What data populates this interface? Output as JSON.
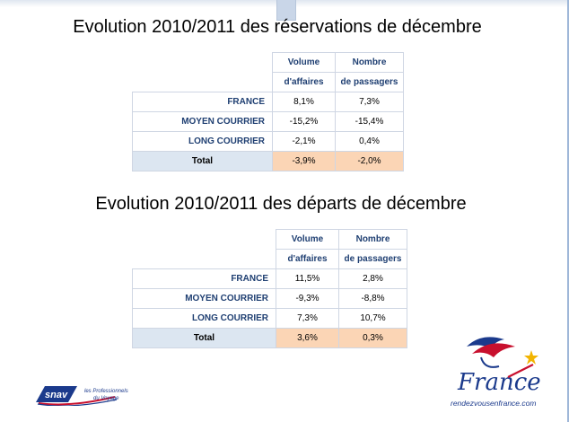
{
  "slide": {
    "title1": "Evolution 2010/2011 des réservations de décembre",
    "title2": "Evolution 2010/2011 des départs de décembre"
  },
  "table1": {
    "headers": [
      {
        "line1": "Volume",
        "line2": "d'affaires"
      },
      {
        "line1": "Nombre",
        "line2": "de passagers"
      }
    ],
    "rows": [
      {
        "label": "FRANCE",
        "v1": "8,1%",
        "v2": "7,3%"
      },
      {
        "label": "MOYEN COURRIER",
        "v1": "-15,2%",
        "v2": "-15,4%"
      },
      {
        "label": "LONG COURRIER",
        "v1": "-2,1%",
        "v2": "0,4%"
      }
    ],
    "total": {
      "label": "Total",
      "v1": "-3,9%",
      "v2": "-2,0%"
    }
  },
  "table2": {
    "headers": [
      {
        "line1": "Volume",
        "line2": "d'affaires"
      },
      {
        "line1": "Nombre",
        "line2": "de passagers"
      }
    ],
    "rows": [
      {
        "label": "FRANCE",
        "v1": "11,5%",
        "v2": "2,8%"
      },
      {
        "label": "MOYEN COURRIER",
        "v1": "-9,3%",
        "v2": "-8,8%"
      },
      {
        "label": "LONG COURRIER",
        "v1": "7,3%",
        "v2": "10,7%"
      }
    ],
    "total": {
      "label": "Total",
      "v1": "3,6%",
      "v2": "0,3%"
    }
  },
  "logos": {
    "snav_name": "snav",
    "snav_tag_1": "les Professionnels",
    "snav_tag_2": "du Voyage",
    "france_word": "France",
    "france_url": "rendezvousenfrance.com"
  },
  "colors": {
    "header_text": "#1f3f72",
    "total_label_bg": "#dce6f1",
    "total_value_bg": "#fbd5b5",
    "border": "#cfd6e3"
  }
}
